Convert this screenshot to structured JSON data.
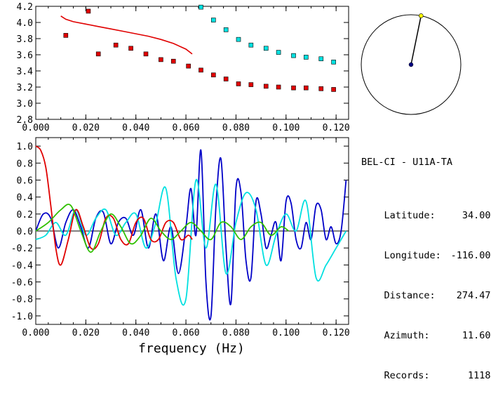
{
  "station": {
    "name": "BEL-CI - U11A-TA",
    "rows": [
      {
        "label": "Latitude:",
        "value": "34.00"
      },
      {
        "label": "Longitude:",
        "value": "-116.00"
      },
      {
        "label": "Distance:",
        "value": "274.47"
      },
      {
        "label": "Azimuth:",
        "value": "11.60"
      },
      {
        "label": "Records:",
        "value": "1118"
      }
    ]
  },
  "colors": {
    "red": "#e00000",
    "cyan": "#00e0e0",
    "blue": "#0000c8",
    "green": "#30c000",
    "yellow": "#ffff00",
    "navy": "#000080"
  },
  "chart_data": [
    {
      "type": "scatter",
      "title": "",
      "xlabel": "",
      "ylabel": "",
      "xlim": [
        0.0,
        0.125
      ],
      "ylim": [
        2.8,
        4.2
      ],
      "xticks": [
        "0.000",
        "0.020",
        "0.040",
        "0.060",
        "0.080",
        "0.100",
        "0.120"
      ],
      "yticks": [
        "2.8",
        "3.0",
        "3.2",
        "3.4",
        "3.6",
        "3.8",
        "4.0",
        "4.2"
      ],
      "xtick_values": [
        0.0,
        0.02,
        0.04,
        0.06,
        0.08,
        0.1,
        0.12
      ],
      "ytick_values": [
        2.8,
        3.0,
        3.2,
        3.4,
        3.6,
        3.8,
        4.0,
        4.2
      ],
      "series": [
        {
          "color": "red",
          "kind": "squares",
          "x": [
            0.012,
            0.021,
            0.025,
            0.032,
            0.038,
            0.044,
            0.05,
            0.055,
            0.061,
            0.066,
            0.071,
            0.076,
            0.081,
            0.086,
            0.092,
            0.097,
            0.103,
            0.108,
            0.114,
            0.119
          ],
          "y": [
            3.84,
            4.14,
            3.61,
            3.72,
            3.68,
            3.61,
            3.54,
            3.52,
            3.46,
            3.41,
            3.35,
            3.3,
            3.24,
            3.23,
            3.21,
            3.2,
            3.19,
            3.19,
            3.18,
            3.17
          ]
        },
        {
          "color": "cyan",
          "kind": "squares",
          "x": [
            0.066,
            0.071,
            0.076,
            0.081,
            0.086,
            0.092,
            0.097,
            0.103,
            0.108,
            0.114,
            0.119
          ],
          "y": [
            4.19,
            4.03,
            3.91,
            3.79,
            3.72,
            3.68,
            3.63,
            3.59,
            3.57,
            3.55,
            3.51
          ]
        },
        {
          "color": "red",
          "kind": "line",
          "x": [
            0.01,
            0.012,
            0.015,
            0.02,
            0.025,
            0.03,
            0.035,
            0.04,
            0.045,
            0.05,
            0.055,
            0.06,
            0.0625
          ],
          "y": [
            4.08,
            4.04,
            4.01,
            3.98,
            3.95,
            3.92,
            3.89,
            3.86,
            3.83,
            3.79,
            3.74,
            3.67,
            3.61
          ]
        }
      ]
    },
    {
      "type": "line",
      "title": "",
      "xlabel": "frequency (Hz)",
      "ylabel": "",
      "xlim": [
        0.0,
        0.125
      ],
      "ylim": [
        -1.1,
        1.1
      ],
      "xticks": [
        "0.000",
        "0.020",
        "0.040",
        "0.060",
        "0.080",
        "0.100",
        "0.120"
      ],
      "yticks": [
        "-1.0",
        "-0.8",
        "-0.6",
        "-0.4",
        "-0.2",
        "0.0",
        "0.2",
        "0.4",
        "0.6",
        "0.8",
        "1.0"
      ],
      "xtick_values": [
        0.0,
        0.02,
        0.04,
        0.06,
        0.08,
        0.1,
        0.12
      ],
      "ytick_values": [
        -1.0,
        -0.8,
        -0.6,
        -0.4,
        -0.2,
        0.0,
        0.2,
        0.4,
        0.6,
        0.8,
        1.0
      ],
      "series": [
        {
          "color": "blue",
          "x": [
            0.0,
            0.003,
            0.006,
            0.009,
            0.012,
            0.015,
            0.018,
            0.021,
            0.024,
            0.027,
            0.03,
            0.033,
            0.036,
            0.039,
            0.042,
            0.045,
            0.048,
            0.051,
            0.054,
            0.057,
            0.06,
            0.062,
            0.064,
            0.066,
            0.068,
            0.07,
            0.072,
            0.074,
            0.076,
            0.078,
            0.08,
            0.082,
            0.084,
            0.086,
            0.088,
            0.09,
            0.092,
            0.094,
            0.096,
            0.098,
            0.1,
            0.102,
            0.104,
            0.106,
            0.108,
            0.11,
            0.112,
            0.114,
            0.116,
            0.118,
            0.12,
            0.122,
            0.124
          ],
          "y": [
            0.0,
            0.2,
            0.15,
            -0.2,
            0.1,
            0.25,
            0.05,
            -0.2,
            0.15,
            0.22,
            -0.15,
            0.1,
            0.15,
            -0.05,
            0.25,
            -0.2,
            0.2,
            -0.35,
            0.05,
            -0.5,
            0.05,
            0.5,
            -0.05,
            0.95,
            -0.6,
            -1.0,
            0.3,
            0.85,
            -0.2,
            -0.85,
            0.5,
            0.45,
            -0.35,
            -0.55,
            0.35,
            0.2,
            -0.2,
            -0.05,
            0.1,
            -0.35,
            0.35,
            0.33,
            -0.1,
            -0.2,
            0.1,
            -0.1,
            0.3,
            0.25,
            -0.1,
            0.05,
            -0.15,
            0.0,
            0.6
          ]
        },
        {
          "color": "cyan",
          "x": [
            0.0,
            0.004,
            0.008,
            0.012,
            0.016,
            0.02,
            0.024,
            0.028,
            0.032,
            0.036,
            0.04,
            0.044,
            0.048,
            0.052,
            0.056,
            0.06,
            0.064,
            0.068,
            0.072,
            0.076,
            0.08,
            0.084,
            0.088,
            0.092,
            0.096,
            0.1,
            0.104,
            0.108,
            0.112,
            0.116,
            0.12,
            0.124
          ],
          "y": [
            -0.1,
            -0.05,
            0.1,
            -0.05,
            0.25,
            -0.05,
            0.15,
            0.25,
            -0.05,
            0.1,
            0.2,
            -0.2,
            0.1,
            0.5,
            -0.55,
            -0.8,
            0.6,
            -0.2,
            0.55,
            -0.5,
            0.1,
            0.45,
            0.25,
            -0.4,
            -0.05,
            0.2,
            0.0,
            0.35,
            -0.55,
            -0.4,
            -0.2,
            0.0
          ]
        },
        {
          "color": "red",
          "x": [
            0.0,
            0.002,
            0.004,
            0.006,
            0.008,
            0.01,
            0.013,
            0.016,
            0.019,
            0.022,
            0.025,
            0.028,
            0.031,
            0.034,
            0.037,
            0.04,
            0.043,
            0.046,
            0.049,
            0.052,
            0.055,
            0.058,
            0.061,
            0.0625
          ],
          "y": [
            1.0,
            0.95,
            0.75,
            0.3,
            -0.2,
            -0.4,
            -0.1,
            0.25,
            0.05,
            -0.2,
            -0.15,
            0.15,
            0.15,
            -0.1,
            -0.15,
            0.1,
            0.15,
            -0.1,
            -0.1,
            0.1,
            0.1,
            -0.1,
            -0.05,
            -0.1
          ]
        },
        {
          "color": "green",
          "x": [
            0.0,
            0.005,
            0.01,
            0.014,
            0.018,
            0.022,
            0.026,
            0.03,
            0.034,
            0.038,
            0.042,
            0.046,
            0.05,
            0.054,
            0.058,
            0.062,
            0.066,
            0.07,
            0.074,
            0.078,
            0.082,
            0.086,
            0.09,
            0.094,
            0.098,
            0.101
          ],
          "y": [
            0.0,
            0.1,
            0.25,
            0.3,
            0.0,
            -0.25,
            0.0,
            0.2,
            0.05,
            -0.15,
            -0.05,
            0.15,
            0.0,
            -0.1,
            0.0,
            0.1,
            0.0,
            -0.1,
            0.1,
            0.05,
            -0.1,
            0.05,
            0.1,
            -0.05,
            0.05,
            0.0
          ]
        }
      ]
    },
    {
      "type": "compass",
      "azimuth_deg": 11.6
    }
  ]
}
